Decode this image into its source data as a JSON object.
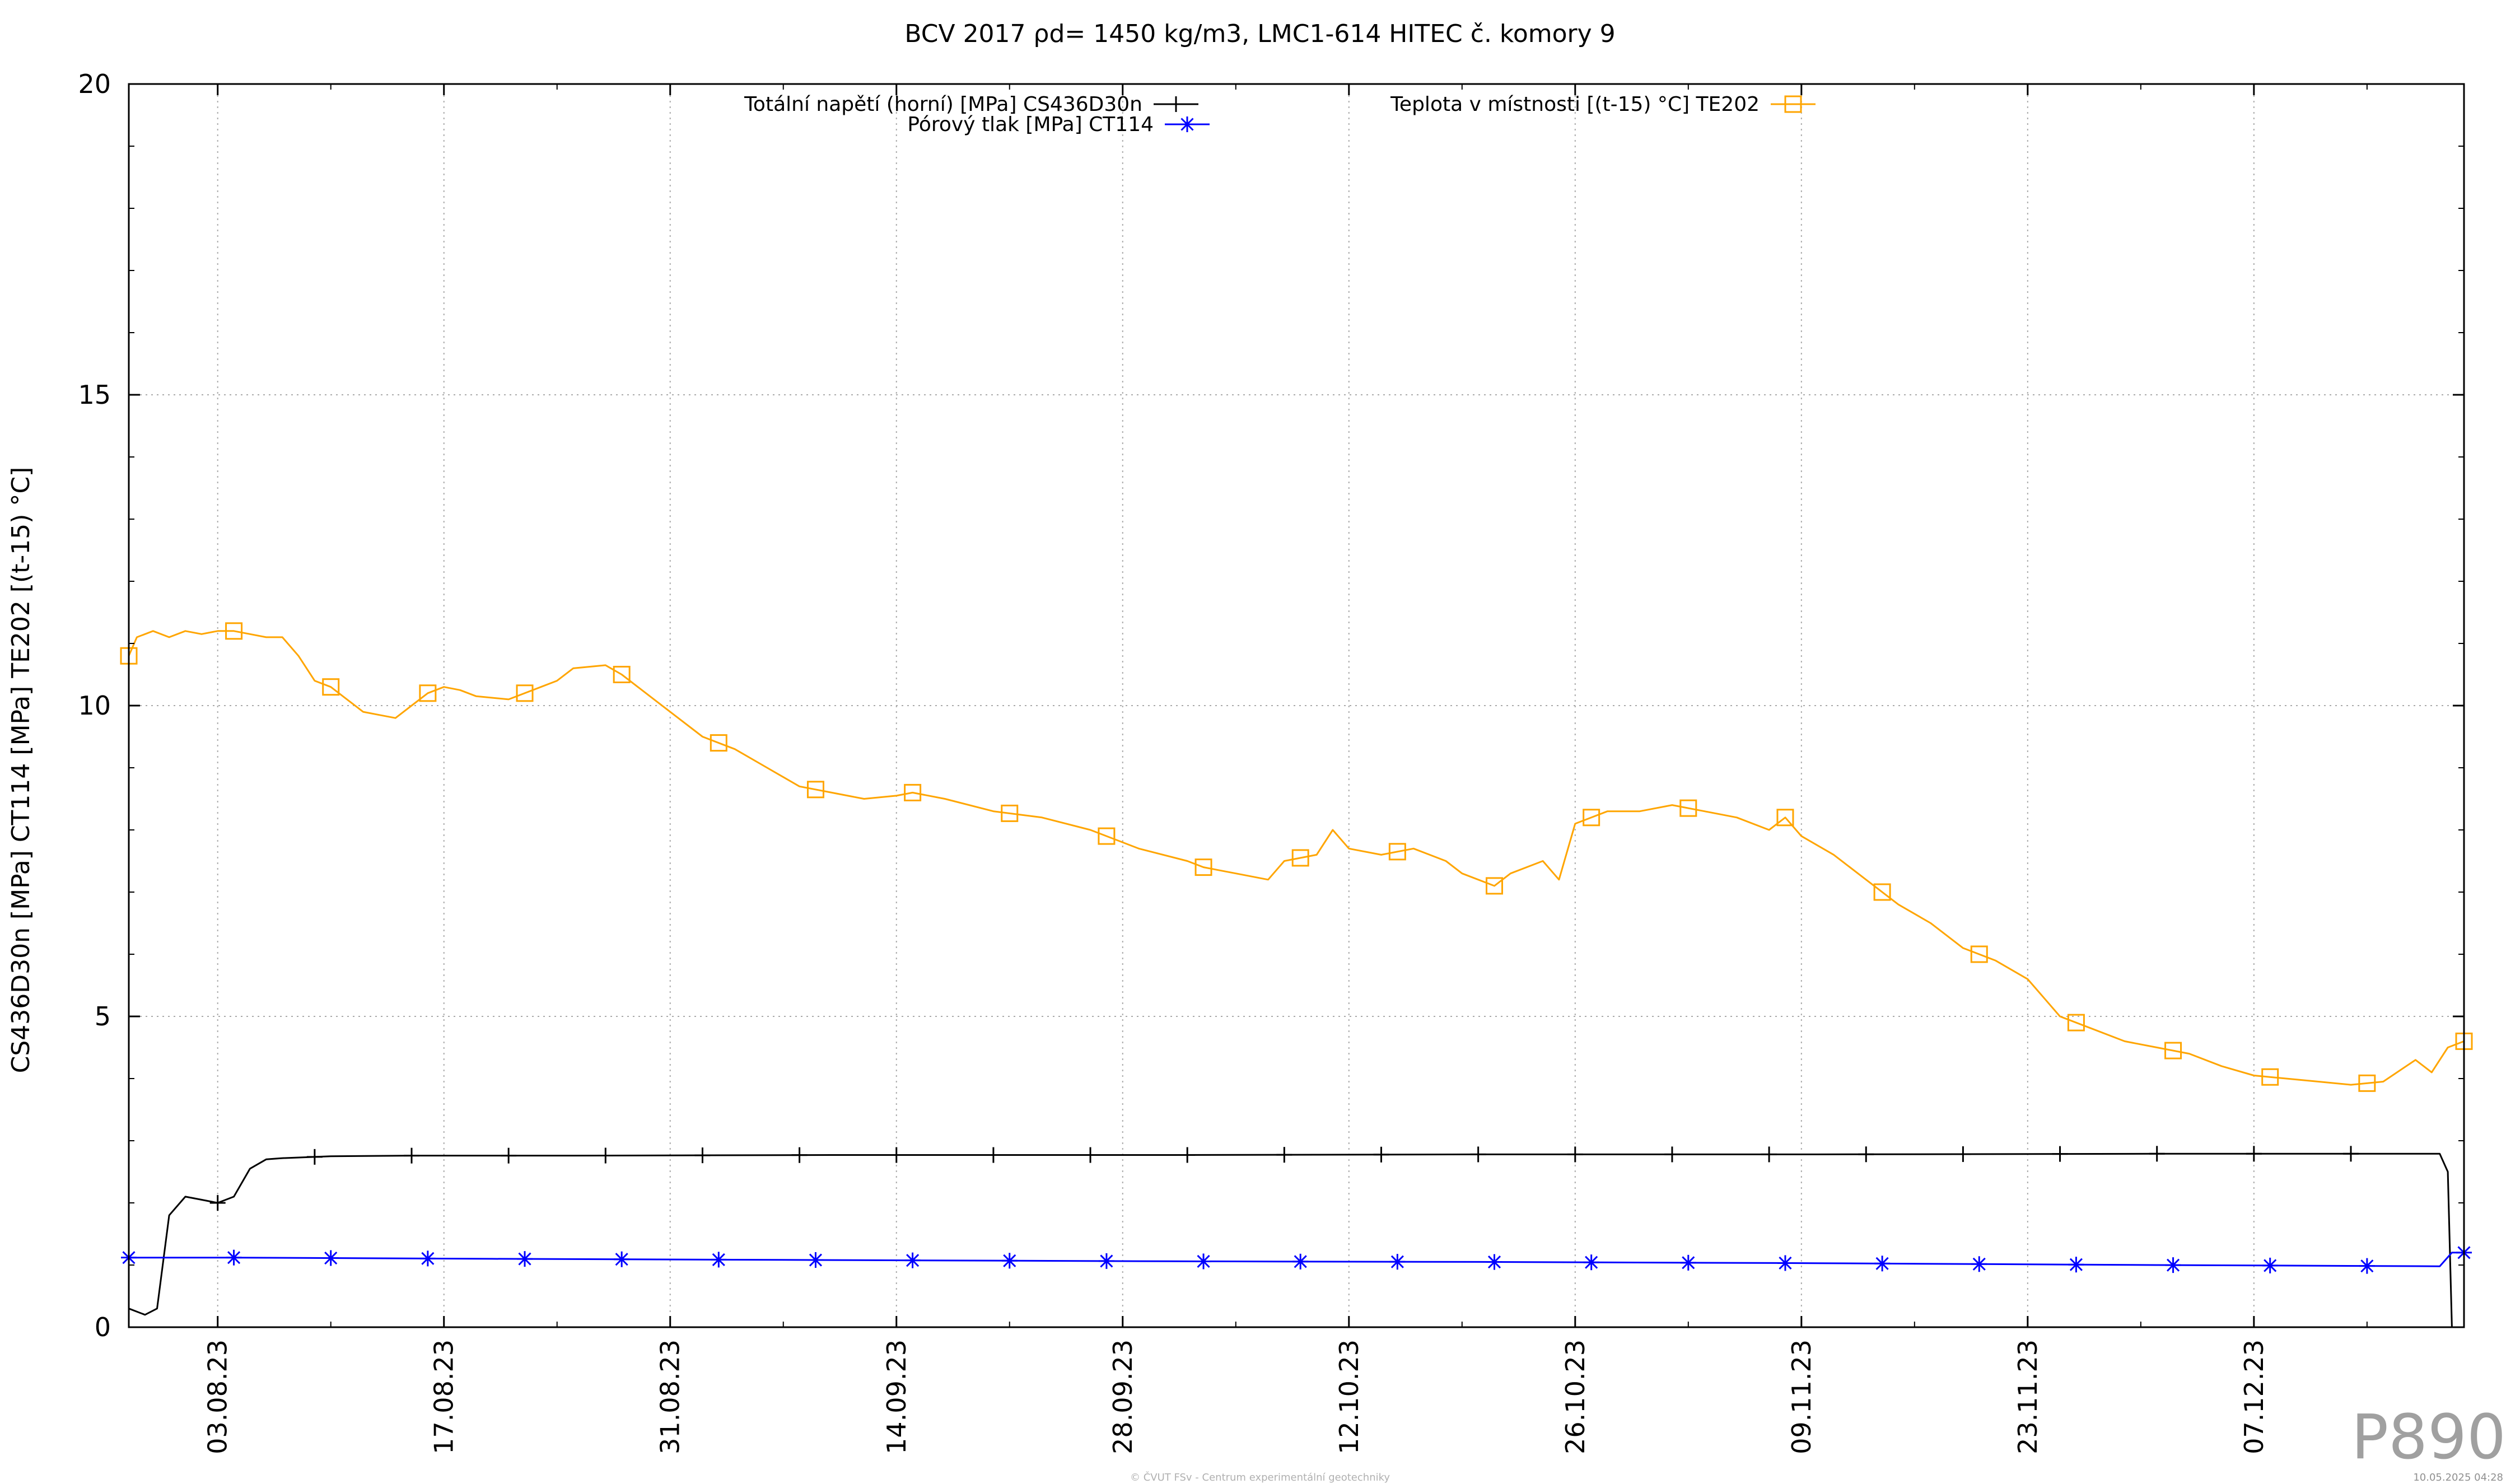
{
  "chart_data": {
    "type": "line",
    "title": "BCV 2017 ρd= 1450 kg/m3, LMC1-614 HITEC č. komory 9",
    "xlabel": "",
    "ylabel": "CS436D30n [MPa] CT114 [MPa] TE202 [(t-15) °C]",
    "ylim": [
      0,
      20
    ],
    "y_ticks": [
      "0",
      "5",
      "10",
      "15",
      "20"
    ],
    "y_tick_values": [
      0,
      5,
      10,
      15,
      20
    ],
    "xlim": [
      "2023-07-28T12:00",
      "2023-12-20T00:00"
    ],
    "x_ticks": [
      "03.08.23",
      "17.08.23",
      "31.08.23",
      "14.09.23",
      "28.09.23",
      "12.10.23",
      "26.10.23",
      "09.11.23",
      "23.11.23",
      "07.12.23"
    ],
    "x_tick_dates": [
      "2023-08-03",
      "2023-08-17",
      "2023-08-31",
      "2023-09-14",
      "2023-09-28",
      "2023-10-12",
      "2023-10-26",
      "2023-11-09",
      "2023-11-23",
      "2023-12-07"
    ],
    "grid": true,
    "legend": "top",
    "series": [
      {
        "name": "Totální napětí (horní) [MPa] CS436D30n",
        "color": "#000000",
        "marker": "plus",
        "x": [
          "2023-07-28T12:00",
          "2023-07-29T12:00",
          "2023-07-30T06:00",
          "2023-07-31T00:00",
          "2023-08-01T00:00",
          "2023-08-02T00:00",
          "2023-08-03T00:00",
          "2023-08-04T00:00",
          "2023-08-05T00:00",
          "2023-08-06T00:00",
          "2023-08-07T00:00",
          "2023-08-10T00:00",
          "2023-08-15T00:00",
          "2023-08-25T00:00",
          "2023-09-10T00:00",
          "2023-10-01T00:00",
          "2023-10-20T00:00",
          "2023-11-10T00:00",
          "2023-12-01T00:00",
          "2023-12-18T12:00",
          "2023-12-19T00:00",
          "2023-12-19T06:00",
          "2023-12-19T12:00"
        ],
        "y": [
          0.3,
          0.2,
          0.3,
          1.8,
          2.1,
          2.05,
          2.0,
          2.1,
          2.55,
          2.7,
          2.72,
          2.75,
          2.76,
          2.76,
          2.77,
          2.77,
          2.78,
          2.78,
          2.79,
          2.79,
          2.5,
          0.0,
          0.0
        ],
        "marker_dates": [
          "2023-08-03",
          "2023-08-09",
          "2023-08-15",
          "2023-08-21",
          "2023-08-27",
          "2023-09-02",
          "2023-09-08",
          "2023-09-14",
          "2023-09-20",
          "2023-09-26",
          "2023-10-02",
          "2023-10-08",
          "2023-10-14",
          "2023-10-20",
          "2023-10-26",
          "2023-11-01",
          "2023-11-07",
          "2023-11-13",
          "2023-11-19",
          "2023-11-25",
          "2023-12-01",
          "2023-12-07",
          "2023-12-13"
        ]
      },
      {
        "name": "Pórový tlak [MPa] CT114",
        "color": "#0000ff",
        "marker": "star",
        "x": [
          "2023-07-28T12:00",
          "2023-08-04T00:00",
          "2023-08-20T00:00",
          "2023-09-10T00:00",
          "2023-10-01T00:00",
          "2023-10-20T00:00",
          "2023-11-10T00:00",
          "2023-12-01T00:00",
          "2023-12-18T12:00",
          "2023-12-19T06:00",
          "2023-12-20T00:00"
        ],
        "y": [
          1.12,
          1.12,
          1.1,
          1.08,
          1.06,
          1.05,
          1.03,
          1.0,
          0.98,
          1.2,
          1.2
        ],
        "marker_dates": [
          "2023-07-28T12:00",
          "2023-08-04",
          "2023-08-10",
          "2023-08-16",
          "2023-08-22",
          "2023-08-28",
          "2023-09-03",
          "2023-09-09",
          "2023-09-15",
          "2023-09-21",
          "2023-09-27",
          "2023-10-03",
          "2023-10-09",
          "2023-10-15",
          "2023-10-21",
          "2023-10-27",
          "2023-11-02",
          "2023-11-08",
          "2023-11-14",
          "2023-11-20",
          "2023-11-26",
          "2023-12-02",
          "2023-12-08",
          "2023-12-14",
          "2023-12-20"
        ]
      },
      {
        "name": "Teplota v místnosti [(t-15) °C] TE202",
        "color": "#ffa500",
        "marker": "square",
        "x": [
          "2023-07-28T12:00",
          "2023-07-29T00:00",
          "2023-07-30T00:00",
          "2023-07-31T00:00",
          "2023-08-01T00:00",
          "2023-08-02T00:00",
          "2023-08-03T00:00",
          "2023-08-04T00:00",
          "2023-08-05T00:00",
          "2023-08-06T00:00",
          "2023-08-07T00:00",
          "2023-08-08T00:00",
          "2023-08-09T00:00",
          "2023-08-10T00:00",
          "2023-08-11T00:00",
          "2023-08-12T00:00",
          "2023-08-13T00:00",
          "2023-08-14T00:00",
          "2023-08-15T00:00",
          "2023-08-16T00:00",
          "2023-08-17T00:00",
          "2023-08-18T00:00",
          "2023-08-19T00:00",
          "2023-08-21T00:00",
          "2023-08-23T00:00",
          "2023-08-24T00:00",
          "2023-08-25T00:00",
          "2023-08-27T00:00",
          "2023-08-28T00:00",
          "2023-08-29T00:00",
          "2023-08-30T00:00",
          "2023-08-31T00:00",
          "2023-09-02T00:00",
          "2023-09-04T00:00",
          "2023-09-06T00:00",
          "2023-09-08T00:00",
          "2023-09-10T00:00",
          "2023-09-12T00:00",
          "2023-09-14T00:00",
          "2023-09-15T00:00",
          "2023-09-17T00:00",
          "2023-09-20T00:00",
          "2023-09-23T00:00",
          "2023-09-26T00:00",
          "2023-09-29T00:00",
          "2023-10-02T00:00",
          "2023-10-03T00:00",
          "2023-10-04T00:00",
          "2023-10-05T00:00",
          "2023-10-07T00:00",
          "2023-10-08T00:00",
          "2023-10-10T00:00",
          "2023-10-11T00:00",
          "2023-10-12T00:00",
          "2023-10-14T00:00",
          "2023-10-16T00:00",
          "2023-10-18T00:00",
          "2023-10-19T00:00",
          "2023-10-20T00:00",
          "2023-10-21T00:00",
          "2023-10-22T00:00",
          "2023-10-24T00:00",
          "2023-10-25T00:00",
          "2023-10-26T00:00",
          "2023-10-28T00:00",
          "2023-10-30T00:00",
          "2023-11-01T00:00",
          "2023-11-03T00:00",
          "2023-11-05T00:00",
          "2023-11-07T00:00",
          "2023-11-08T00:00",
          "2023-11-09T00:00",
          "2023-11-11T00:00",
          "2023-11-13T00:00",
          "2023-11-15T00:00",
          "2023-11-17T00:00",
          "2023-11-19T00:00",
          "2023-11-21T00:00",
          "2023-11-23T00:00",
          "2023-11-24T00:00",
          "2023-11-25T00:00",
          "2023-11-27T00:00",
          "2023-11-29T00:00",
          "2023-12-01T00:00",
          "2023-12-03T00:00",
          "2023-12-05T00:00",
          "2023-12-07T00:00",
          "2023-12-09T00:00",
          "2023-12-11T00:00",
          "2023-12-13T00:00",
          "2023-12-15T00:00",
          "2023-12-17T00:00",
          "2023-12-18T00:00",
          "2023-12-19T00:00",
          "2023-12-20T00:00"
        ],
        "y": [
          10.8,
          11.1,
          11.2,
          11.1,
          11.2,
          11.15,
          11.2,
          11.2,
          11.15,
          11.1,
          11.1,
          10.8,
          10.4,
          10.3,
          10.1,
          9.9,
          9.85,
          9.8,
          10.0,
          10.2,
          10.3,
          10.25,
          10.15,
          10.1,
          10.3,
          10.4,
          10.6,
          10.65,
          10.5,
          10.3,
          10.1,
          9.9,
          9.5,
          9.3,
          9.0,
          8.7,
          8.6,
          8.5,
          8.55,
          8.6,
          8.5,
          8.3,
          8.2,
          8.0,
          7.7,
          7.5,
          7.4,
          7.35,
          7.3,
          7.2,
          7.5,
          7.6,
          8.0,
          7.7,
          7.6,
          7.7,
          7.5,
          7.3,
          7.2,
          7.1,
          7.3,
          7.5,
          7.2,
          8.1,
          8.3,
          8.3,
          8.4,
          8.3,
          8.2,
          8.0,
          8.2,
          7.9,
          7.6,
          7.2,
          6.8,
          6.5,
          6.1,
          5.9,
          5.6,
          5.3,
          5.0,
          4.8,
          4.6,
          4.5,
          4.4,
          4.2,
          4.05,
          4.0,
          3.95,
          3.9,
          3.95,
          4.3,
          4.1,
          4.5,
          4.6
        ],
        "marker_dates": [
          "2023-07-28T12:00",
          "2023-08-04",
          "2023-08-10",
          "2023-08-16",
          "2023-08-22",
          "2023-08-28",
          "2023-09-03",
          "2023-09-09",
          "2023-09-15",
          "2023-09-21",
          "2023-09-27",
          "2023-10-03",
          "2023-10-09",
          "2023-10-15",
          "2023-10-21",
          "2023-10-27",
          "2023-11-02",
          "2023-11-08",
          "2023-11-14",
          "2023-11-20",
          "2023-11-26",
          "2023-12-02",
          "2023-12-08",
          "2023-12-14",
          "2023-12-20"
        ]
      }
    ],
    "watermark": "P890",
    "footer_center": "© ČVUT FSv - Centrum experimentální geotechniky",
    "footer_right": "10.05.2025 04:28"
  }
}
